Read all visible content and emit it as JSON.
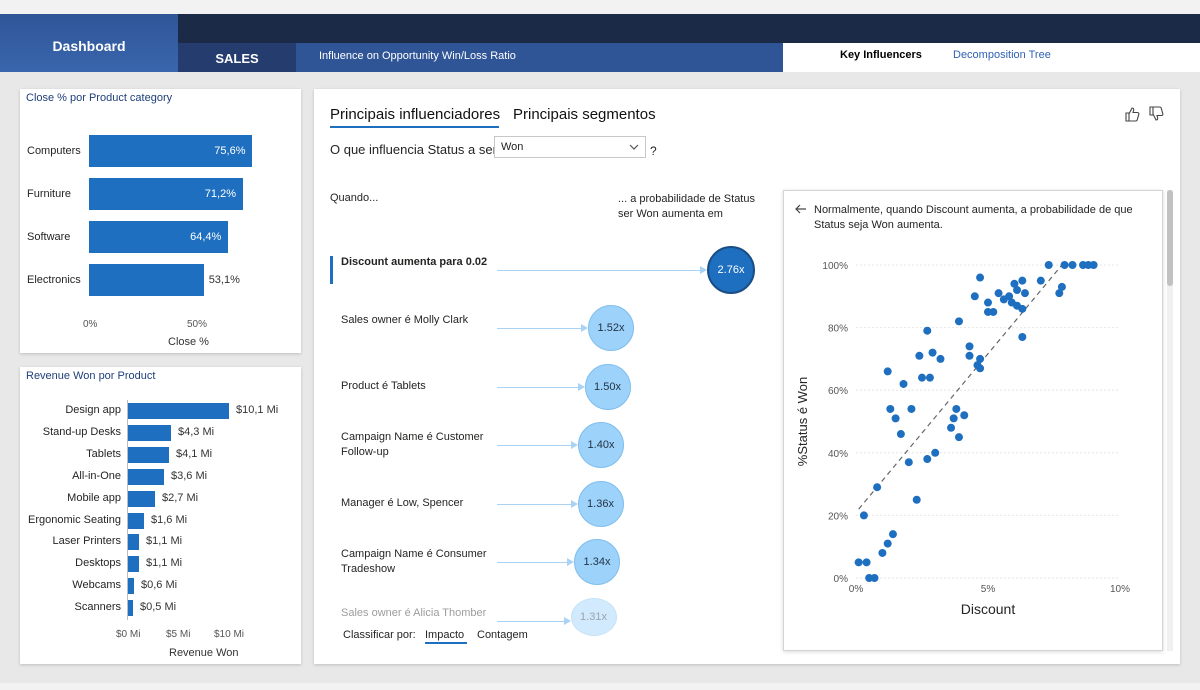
{
  "nav": {
    "dashboard_label": "Dashboard",
    "sales_tab": "SALES",
    "subtitle": "Influence on Opportunity Win/Loss Ratio",
    "key_influencers_tab": "Key Influencers",
    "decomposition_tab": "Decomposition Tree"
  },
  "colors": {
    "bar": "#1e6fbf",
    "nav_dark": "#1b2a47",
    "bubble": "#9dd2fb",
    "bubble_selected": "#1e6fbf",
    "dot": "#1e6fbf"
  },
  "card_close": {
    "title": "Close % por Product category",
    "x_ticks": [
      "0%",
      "50%"
    ],
    "x_title": "Close %"
  },
  "card_revenue": {
    "title": "Revenue Won por Product",
    "x_ticks": [
      "$0 Mi",
      "$5 Mi",
      "$10 Mi"
    ],
    "x_title": "Revenue Won"
  },
  "chart_data": [
    {
      "type": "bar",
      "title": "Close % por Product category",
      "categories": [
        "Computers",
        "Furniture",
        "Software",
        "Electronics"
      ],
      "values": [
        75.6,
        71.2,
        64.4,
        53.1
      ],
      "value_labels": [
        "75,6%",
        "71,2%",
        "64,4%",
        "53,1%"
      ],
      "xlabel": "Close %",
      "xlim": [
        0,
        100
      ],
      "orientation": "horizontal"
    },
    {
      "type": "bar",
      "title": "Revenue Won por Product",
      "categories": [
        "Design app",
        "Stand-up Desks",
        "Tablets",
        "All-in-One",
        "Mobile app",
        "Ergonomic Seating",
        "Laser Printers",
        "Desktops",
        "Webcams",
        "Scanners"
      ],
      "values": [
        10.1,
        4.3,
        4.1,
        3.6,
        2.7,
        1.6,
        1.1,
        1.1,
        0.6,
        0.5
      ],
      "value_labels": [
        "$10,1 Mi",
        "$4,3 Mi",
        "$4,1 Mi",
        "$3,6 Mi",
        "$2,7 Mi",
        "$1,6 Mi",
        "$1,1 Mi",
        "$1,1 Mi",
        "$0,6 Mi",
        "$0,5 Mi"
      ],
      "xlabel": "Revenue Won",
      "xlim": [
        0,
        12
      ],
      "orientation": "horizontal"
    },
    {
      "type": "scatter",
      "xlabel": "Discount",
      "ylabel": "%Status é Won",
      "x_ticks": [
        "0%",
        "5%",
        "10%"
      ],
      "y_ticks": [
        "0%",
        "20%",
        "40%",
        "60%",
        "80%",
        "100%"
      ],
      "xlim": [
        0,
        10
      ],
      "ylim": [
        0,
        100
      ],
      "trendline": [
        [
          0.1,
          22
        ],
        [
          7.8,
          100
        ]
      ],
      "points": [
        [
          0.1,
          5
        ],
        [
          0.4,
          5
        ],
        [
          0.5,
          0
        ],
        [
          0.7,
          0
        ],
        [
          0.3,
          20
        ],
        [
          0.8,
          29
        ],
        [
          1.0,
          8
        ],
        [
          1.2,
          11
        ],
        [
          1.4,
          14
        ],
        [
          1.2,
          66
        ],
        [
          1.3,
          54
        ],
        [
          1.5,
          51
        ],
        [
          1.7,
          46
        ],
        [
          1.8,
          62
        ],
        [
          2.0,
          37
        ],
        [
          2.1,
          54
        ],
        [
          2.3,
          25
        ],
        [
          2.5,
          64
        ],
        [
          2.4,
          71
        ],
        [
          2.7,
          38
        ],
        [
          2.9,
          72
        ],
        [
          3.0,
          40
        ],
        [
          2.8,
          64
        ],
        [
          3.2,
          70
        ],
        [
          2.7,
          79
        ],
        [
          3.6,
          48
        ],
        [
          3.7,
          51
        ],
        [
          3.8,
          54
        ],
        [
          3.9,
          45
        ],
        [
          4.1,
          52
        ],
        [
          3.9,
          82
        ],
        [
          4.3,
          74
        ],
        [
          4.3,
          71
        ],
        [
          4.6,
          68
        ],
        [
          4.7,
          70
        ],
        [
          4.7,
          67
        ],
        [
          4.5,
          90
        ],
        [
          4.7,
          96
        ],
        [
          5.0,
          85
        ],
        [
          5.0,
          88
        ],
        [
          5.2,
          85
        ],
        [
          5.4,
          91
        ],
        [
          5.6,
          89
        ],
        [
          5.8,
          90
        ],
        [
          5.9,
          88
        ],
        [
          6.0,
          94
        ],
        [
          6.1,
          92
        ],
        [
          6.1,
          87
        ],
        [
          6.3,
          95
        ],
        [
          6.3,
          86
        ],
        [
          6.3,
          77
        ],
        [
          6.4,
          91
        ],
        [
          7.0,
          95
        ],
        [
          7.3,
          100
        ],
        [
          7.7,
          91
        ],
        [
          7.8,
          93
        ],
        [
          7.9,
          100
        ],
        [
          8.2,
          100
        ],
        [
          8.6,
          100
        ],
        [
          8.8,
          100
        ],
        [
          9.0,
          100
        ]
      ]
    }
  ],
  "key_influencers": {
    "tab_influencers": "Principais influenciadores",
    "tab_segments": "Principais segmentos",
    "question": "O que influencia Status a ser",
    "select_value": "Won",
    "question_mark": "?",
    "when_header": "Quando...",
    "prob_header": "... a probabilidade de Status ser Won aumenta em",
    "rows": [
      {
        "label": "Discount aumenta para 0.02",
        "value": "2.76x",
        "multiplier": 2.76,
        "selected": true
      },
      {
        "label": "Sales owner é Molly Clark",
        "value": "1.52x",
        "multiplier": 1.52,
        "selected": false
      },
      {
        "label": "Product é Tablets",
        "value": "1.50x",
        "multiplier": 1.5,
        "selected": false
      },
      {
        "label": "Campaign Name é Customer Follow-up",
        "value": "1.40x",
        "multiplier": 1.4,
        "selected": false
      },
      {
        "label": "Manager é Low, Spencer",
        "value": "1.36x",
        "multiplier": 1.36,
        "selected": false
      },
      {
        "label": "Campaign Name é Consumer Tradeshow",
        "value": "1.34x",
        "multiplier": 1.34,
        "selected": false
      },
      {
        "label": "Sales owner é Alicia Thomber",
        "value": "1.31x",
        "multiplier": 1.31,
        "selected": false
      }
    ],
    "sort_label": "Classificar por:",
    "sort_impact": "Impacto",
    "sort_count": "Contagem",
    "detail_text": "Normalmente, quando Discount aumenta, a probabilidade de que Status seja Won aumenta."
  }
}
